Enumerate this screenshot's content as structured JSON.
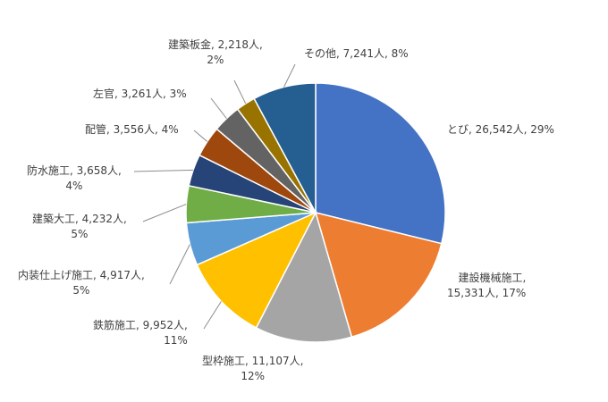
{
  "chart_data": {
    "type": "pie",
    "title": "",
    "start_angle_deg": 0,
    "direction": "clockwise",
    "slices": [
      {
        "name": "とび",
        "value": 26542,
        "unit": "人",
        "percent": "29%",
        "color": "#4472C4",
        "label_lines": [
          "とび, 26,542人, 29%"
        ]
      },
      {
        "name": "建設機械施工",
        "value": 15331,
        "unit": "人",
        "percent": "17%",
        "color": "#ED7D31",
        "label_lines": [
          "建設機械施工,",
          "15,331人, 17%"
        ]
      },
      {
        "name": "型枠施工",
        "value": 11107,
        "unit": "人",
        "percent": "12%",
        "color": "#A5A5A5",
        "label_lines": [
          "型枠施工, 11,107人,",
          "12%"
        ]
      },
      {
        "name": "鉄筋施工",
        "value": 9952,
        "unit": "人",
        "percent": "11%",
        "color": "#FFC000",
        "label_lines": [
          "鉄筋施工, 9,952人,",
          "11%"
        ]
      },
      {
        "name": "内装仕上げ施工",
        "value": 4917,
        "unit": "人",
        "percent": "5%",
        "color": "#5B9BD5",
        "label_lines": [
          "内装仕上げ施工, 4,917人,",
          "5%"
        ]
      },
      {
        "name": "建築大工",
        "value": 4232,
        "unit": "人",
        "percent": "5%",
        "color": "#70AD47",
        "label_lines": [
          "建築大工, 4,232人,",
          "5%"
        ]
      },
      {
        "name": "防水施工",
        "value": 3658,
        "unit": "人",
        "percent": "4%",
        "color": "#264478",
        "label_lines": [
          "防水施工, 3,658人,",
          "4%"
        ]
      },
      {
        "name": "配管",
        "value": 3556,
        "unit": "人",
        "percent": "4%",
        "color": "#9E480E",
        "label_lines": [
          "配管, 3,556人, 4%"
        ]
      },
      {
        "name": "左官",
        "value": 3261,
        "unit": "人",
        "percent": "3%",
        "color": "#636363",
        "label_lines": [
          "左官, 3,261人, 3%"
        ]
      },
      {
        "name": "建築板金",
        "value": 2218,
        "unit": "人",
        "percent": "2%",
        "color": "#997300",
        "label_lines": [
          "建築板金, 2,218人,",
          "2%"
        ]
      },
      {
        "name": "その他",
        "value": 7241,
        "unit": "人",
        "percent": "8%",
        "color": "#255E91",
        "label_lines": [
          "その他, 7,241人, 8%"
        ]
      }
    ]
  }
}
